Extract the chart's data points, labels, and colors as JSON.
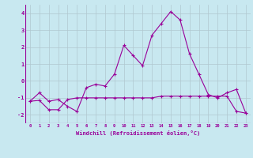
{
  "line1_x": [
    0,
    1,
    2,
    3,
    4,
    5,
    6,
    7,
    8,
    9,
    10,
    11,
    12,
    13,
    14,
    15,
    16,
    17,
    18,
    19,
    20,
    21,
    22,
    23
  ],
  "line1_y": [
    -1.2,
    -0.7,
    -1.2,
    -1.1,
    -1.5,
    -1.8,
    -0.4,
    -0.2,
    -0.3,
    0.4,
    2.1,
    1.5,
    0.9,
    2.7,
    3.4,
    4.1,
    3.6,
    1.6,
    0.4,
    -0.8,
    -1.0,
    -0.7,
    -0.5,
    -1.9
  ],
  "line2_x": [
    0,
    1,
    2,
    3,
    4,
    5,
    6,
    7,
    8,
    9,
    10,
    11,
    12,
    13,
    14,
    15,
    16,
    17,
    18,
    19,
    20,
    21,
    22,
    23
  ],
  "line2_y": [
    -1.2,
    -1.15,
    -1.7,
    -1.7,
    -1.1,
    -1.0,
    -1.0,
    -1.0,
    -1.0,
    -1.0,
    -1.0,
    -1.0,
    -1.0,
    -1.0,
    -0.9,
    -0.9,
    -0.9,
    -0.9,
    -0.9,
    -0.9,
    -0.9,
    -0.9,
    -1.8,
    -1.9
  ],
  "color": "#990099",
  "bg_color": "#c8e8f0",
  "grid_color": "#b0c8d0",
  "xlabel": "Windchill (Refroidissement éolien,°C)",
  "xlim": [
    -0.5,
    23.5
  ],
  "ylim": [
    -2.5,
    4.5
  ],
  "yticks": [
    -2,
    -1,
    0,
    1,
    2,
    3,
    4
  ],
  "xticks": [
    0,
    1,
    2,
    3,
    4,
    5,
    6,
    7,
    8,
    9,
    10,
    11,
    12,
    13,
    14,
    15,
    16,
    17,
    18,
    19,
    20,
    21,
    22,
    23
  ]
}
